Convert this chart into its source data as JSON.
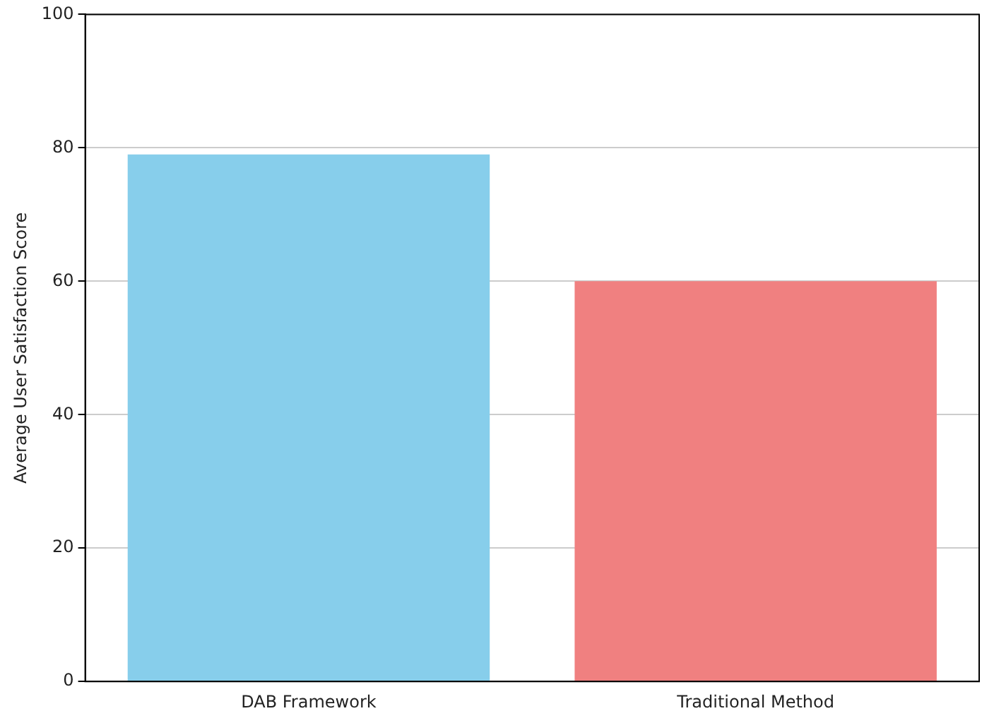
{
  "chart_data": {
    "type": "bar",
    "ylabel": "Average User Satisfaction Score",
    "categories": [
      "DAB Framework",
      "Traditional Method"
    ],
    "values": [
      79,
      60
    ],
    "colors": [
      "#87ceeb",
      "#f08080"
    ],
    "ylim": [
      0,
      100
    ],
    "yticks": [
      0,
      20,
      40,
      60,
      80,
      100
    ],
    "grid": "y",
    "legend": false
  }
}
